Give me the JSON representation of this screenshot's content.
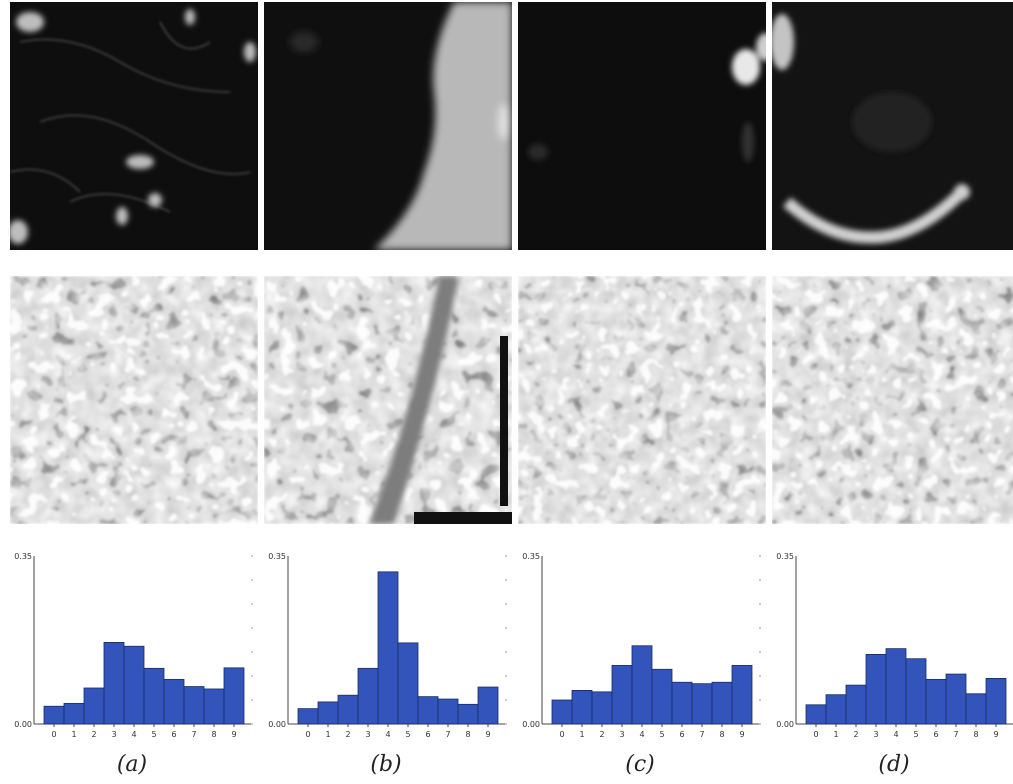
{
  "panels": [
    {
      "caption": "(a)",
      "hist": [
        0.037,
        0.043,
        0.075,
        0.17,
        0.162,
        0.116,
        0.093,
        0.078,
        0.073,
        0.117
      ]
    },
    {
      "caption": "(b)",
      "hist": [
        0.032,
        0.046,
        0.06,
        0.116,
        0.317,
        0.169,
        0.057,
        0.052,
        0.041,
        0.077
      ]
    },
    {
      "caption": "(c)",
      "hist": [
        0.05,
        0.07,
        0.067,
        0.122,
        0.163,
        0.114,
        0.087,
        0.084,
        0.087,
        0.122
      ]
    },
    {
      "caption": "(d)",
      "hist": [
        0.04,
        0.061,
        0.081,
        0.145,
        0.157,
        0.136,
        0.093,
        0.104,
        0.063,
        0.095
      ]
    }
  ],
  "chart_data": [
    {
      "type": "bar",
      "categories": [
        "0",
        "1",
        "2",
        "3",
        "4",
        "5",
        "6",
        "7",
        "8",
        "9"
      ],
      "values": [
        0.037,
        0.043,
        0.075,
        0.17,
        0.162,
        0.116,
        0.093,
        0.078,
        0.073,
        0.117
      ],
      "ylim": [
        0,
        0.35
      ],
      "ytick_labels": [
        "0.00",
        "0.35"
      ],
      "color": "#3355bb"
    },
    {
      "type": "bar",
      "categories": [
        "0",
        "1",
        "2",
        "3",
        "4",
        "5",
        "6",
        "7",
        "8",
        "9"
      ],
      "values": [
        0.032,
        0.046,
        0.06,
        0.116,
        0.317,
        0.169,
        0.057,
        0.052,
        0.041,
        0.077
      ],
      "ylim": [
        0,
        0.35
      ],
      "ytick_labels": [
        "0.00",
        "0.35"
      ],
      "color": "#3355bb"
    },
    {
      "type": "bar",
      "categories": [
        "0",
        "1",
        "2",
        "3",
        "4",
        "5",
        "6",
        "7",
        "8",
        "9"
      ],
      "values": [
        0.05,
        0.07,
        0.067,
        0.122,
        0.163,
        0.114,
        0.087,
        0.084,
        0.087,
        0.122
      ],
      "ylim": [
        0,
        0.35
      ],
      "ytick_labels": [
        "0.00",
        "0.35"
      ],
      "color": "#3355bb"
    },
    {
      "type": "bar",
      "categories": [
        "0",
        "1",
        "2",
        "3",
        "4",
        "5",
        "6",
        "7",
        "8",
        "9"
      ],
      "values": [
        0.04,
        0.061,
        0.081,
        0.145,
        0.157,
        0.136,
        0.093,
        0.104,
        0.063,
        0.095
      ],
      "ylim": [
        0,
        0.35
      ],
      "ytick_labels": [
        "0.00",
        "0.35"
      ],
      "color": "#3355bb"
    }
  ],
  "colors": {
    "bar": "#3355bb",
    "bar_edge": "#1a2a66",
    "axis": "#444444"
  }
}
